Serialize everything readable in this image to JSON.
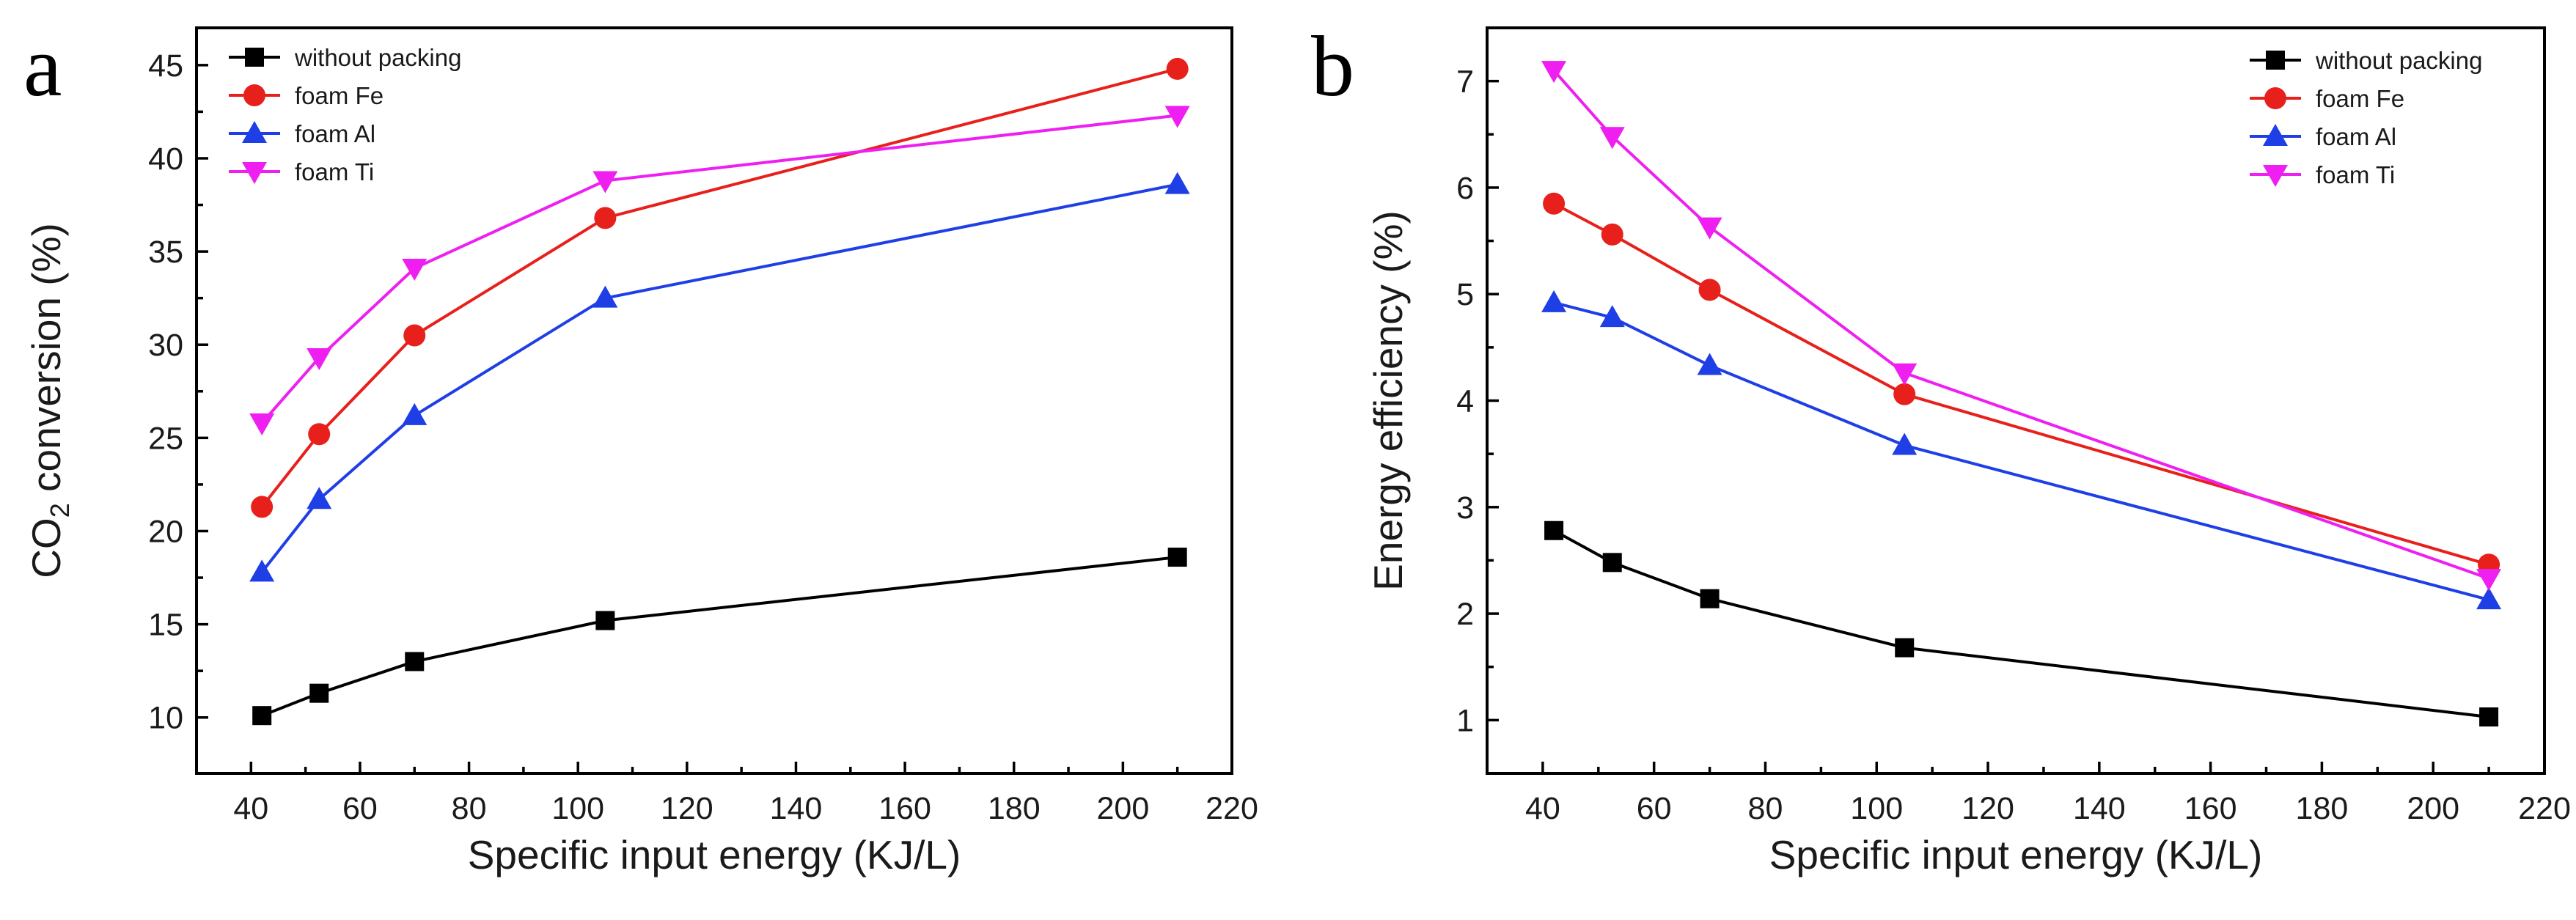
{
  "chart_data": [
    {
      "panel_letter": "a",
      "type": "line",
      "title": "",
      "xlabel": "Specific input energy (KJ/L)",
      "ylabel": {
        "prefix": "CO",
        "subscript": "2",
        "suffix": " conversion (%)"
      },
      "xlim": [
        30,
        220
      ],
      "ylim": [
        7,
        47
      ],
      "xticks": [
        40,
        60,
        80,
        100,
        120,
        140,
        160,
        180,
        200,
        220
      ],
      "yticks": [
        10,
        15,
        20,
        25,
        30,
        35,
        40,
        45
      ],
      "x": [
        42,
        52.5,
        70,
        105,
        210
      ],
      "legend_position": "top-left",
      "grid": false,
      "series": [
        {
          "name": "without packing",
          "color": "#000000",
          "marker": "square",
          "values": [
            10.1,
            11.3,
            13.0,
            15.2,
            18.6
          ]
        },
        {
          "name": "foam Fe",
          "color": "#e8201c",
          "marker": "circle",
          "values": [
            21.3,
            25.2,
            30.5,
            36.8,
            44.8
          ]
        },
        {
          "name": "foam Al",
          "color": "#1f3fe6",
          "marker": "triangle-up",
          "values": [
            17.8,
            21.7,
            26.2,
            32.5,
            38.6
          ]
        },
        {
          "name": "foam Ti",
          "color": "#ee1ff0",
          "marker": "triangle-down",
          "values": [
            25.8,
            29.3,
            34.1,
            38.8,
            42.3
          ]
        }
      ]
    },
    {
      "panel_letter": "b",
      "type": "line",
      "title": "",
      "xlabel": "Specific input energy (KJ/L)",
      "ylabel": {
        "prefix": "Energy efficiency (%)",
        "subscript": "",
        "suffix": ""
      },
      "xlim": [
        30,
        220
      ],
      "ylim": [
        0.5,
        7.5
      ],
      "xticks": [
        40,
        60,
        80,
        100,
        120,
        140,
        160,
        180,
        200,
        220
      ],
      "yticks": [
        1,
        2,
        3,
        4,
        5,
        6,
        7
      ],
      "x": [
        42,
        52.5,
        70,
        105,
        210
      ],
      "legend_position": "top-right",
      "grid": false,
      "series": [
        {
          "name": "without packing",
          "color": "#000000",
          "marker": "square",
          "values": [
            2.78,
            2.48,
            2.14,
            1.68,
            1.03
          ]
        },
        {
          "name": "foam Fe",
          "color": "#e8201c",
          "marker": "circle",
          "values": [
            5.85,
            5.56,
            5.04,
            4.06,
            2.46
          ]
        },
        {
          "name": "foam Al",
          "color": "#1f3fe6",
          "marker": "triangle-up",
          "values": [
            4.92,
            4.78,
            4.33,
            3.58,
            2.13
          ]
        },
        {
          "name": "foam Ti",
          "color": "#ee1ff0",
          "marker": "triangle-down",
          "values": [
            7.1,
            6.48,
            5.63,
            4.26,
            2.33
          ]
        }
      ]
    }
  ]
}
